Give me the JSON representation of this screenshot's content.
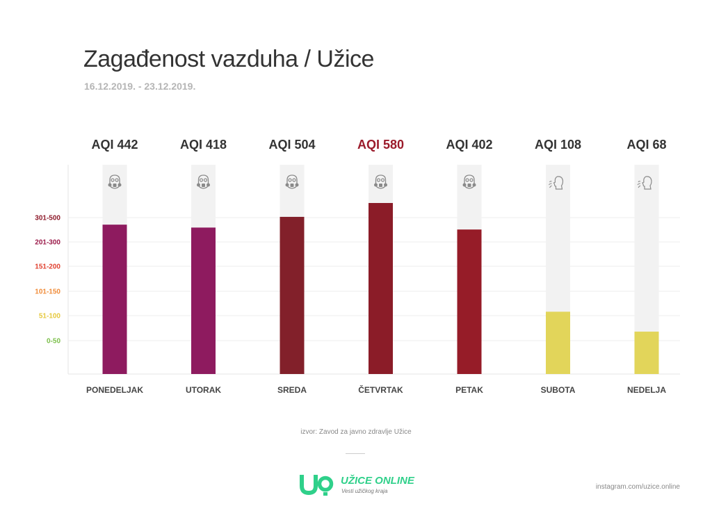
{
  "title": "Zagađenost vazduha / Užice",
  "subtitle": "16.12.2019. - 23.12.2019.",
  "chart_data": {
    "type": "bar",
    "categories": [
      "PONEDELJAK",
      "UTORAK",
      "SREDA",
      "ČETVRTAK",
      "PETAK",
      "SUBOTA",
      "NEDELJA"
    ],
    "values": [
      442,
      418,
      504,
      580,
      402,
      108,
      68
    ],
    "value_labels": [
      "AQI 442",
      "AQI 418",
      "AQI 504",
      "AQI 580",
      "AQI 402",
      "AQI 108",
      "AQI 68"
    ],
    "bar_colors": [
      "#8e1b5f",
      "#8e1b5f",
      "#82202a",
      "#8b1c28",
      "#961c28",
      "#e2d55a",
      "#e2d55a"
    ],
    "label_colors": [
      "#333333",
      "#333333",
      "#333333",
      "#9b1b2b",
      "#333333",
      "#333333",
      "#333333"
    ],
    "icons": [
      "gas-mask-icon",
      "gas-mask-icon",
      "gas-mask-icon",
      "gas-mask-icon",
      "gas-mask-icon",
      "person-breathing-icon",
      "person-breathing-icon"
    ],
    "y_bands": [
      {
        "label": "0-50",
        "color": "#7bbf4a",
        "min": 0,
        "max": 50
      },
      {
        "label": "51-100",
        "color": "#e6c83d",
        "min": 51,
        "max": 100
      },
      {
        "label": "101-150",
        "color": "#f08c3a",
        "min": 101,
        "max": 150
      },
      {
        "label": "151-200",
        "color": "#e0402f",
        "min": 151,
        "max": 200
      },
      {
        "label": "201-300",
        "color": "#9b1b4a",
        "min": 201,
        "max": 300
      },
      {
        "label": "301-500",
        "color": "#8e1b2b",
        "min": 301,
        "max": 500
      }
    ],
    "grid": true
  },
  "source": "izvor: Zavod za javno zdravlje Užice",
  "logo": {
    "mark": "UO",
    "name": "UŽICE ONLINE",
    "tagline": "Vesti užičkog kraja",
    "color": "#2fd08a"
  },
  "instagram": "instagram.com/uzice.online"
}
